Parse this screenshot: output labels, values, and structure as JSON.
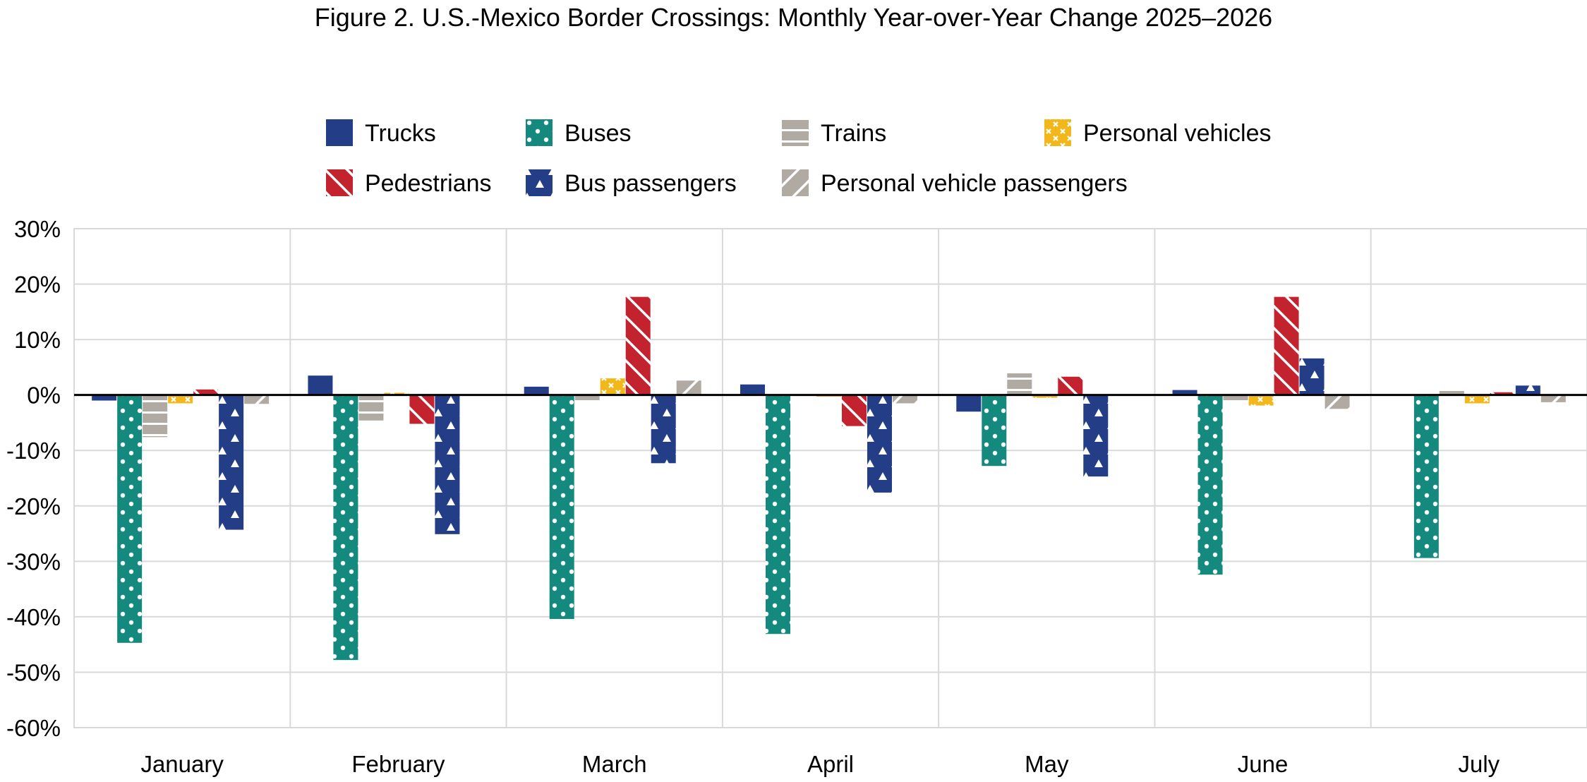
{
  "chart_data": {
    "type": "bar",
    "title": "Figure 2. U.S.-Mexico Border Crossings: Monthly Year-over-Year Change 2025–2026",
    "categories": [
      "January",
      "February",
      "March",
      "April",
      "May",
      "June",
      "July"
    ],
    "ylim": [
      -60,
      30
    ],
    "ytick_values": [
      30,
      20,
      10,
      0,
      -10,
      -20,
      -30,
      -40,
      -50,
      -60
    ],
    "ytick_labels": [
      "30%",
      "20%",
      "10%",
      "0%",
      "-10%",
      "-20%",
      "-30%",
      "-40%",
      "-50%",
      "-60%"
    ],
    "grid": true,
    "legend_position": "top",
    "series": [
      {
        "name": "Trucks",
        "color": "#233e86",
        "pattern": "solid",
        "values": [
          -1.0,
          3.5,
          1.5,
          1.9,
          -3.0,
          0.9,
          0.0
        ]
      },
      {
        "name": "Buses",
        "color": "#138a7d",
        "pattern": "dots",
        "values": [
          -44.7,
          -47.8,
          -40.4,
          -43.1,
          -12.8,
          -32.4,
          -29.4
        ]
      },
      {
        "name": "Trains",
        "color": "#b1aaa3",
        "pattern": "horizontal",
        "values": [
          -7.6,
          -4.6,
          -1.0,
          0.0,
          3.9,
          -1.0,
          0.8
        ]
      },
      {
        "name": "Personal vehicles",
        "color": "#f2b81b",
        "pattern": "crosses",
        "values": [
          -1.5,
          0.4,
          3.0,
          -0.3,
          -0.5,
          -1.9,
          -1.5
        ]
      },
      {
        "name": "Pedestrians",
        "color": "#c3232f",
        "pattern": "diagonal",
        "values": [
          1.0,
          -5.2,
          17.7,
          -5.6,
          3.3,
          17.7,
          0.5
        ]
      },
      {
        "name": "Bus passengers",
        "color": "#233e86",
        "pattern": "triangles",
        "values": [
          -24.3,
          -25.1,
          -12.3,
          -17.6,
          -14.7,
          6.6,
          1.7
        ]
      },
      {
        "name": "Personal vehicle passengers",
        "color": "#b1aaa3",
        "pattern": "diagonal-reverse",
        "values": [
          -1.6,
          0.0,
          2.6,
          -1.5,
          0.0,
          -2.5,
          -1.3
        ]
      }
    ]
  }
}
